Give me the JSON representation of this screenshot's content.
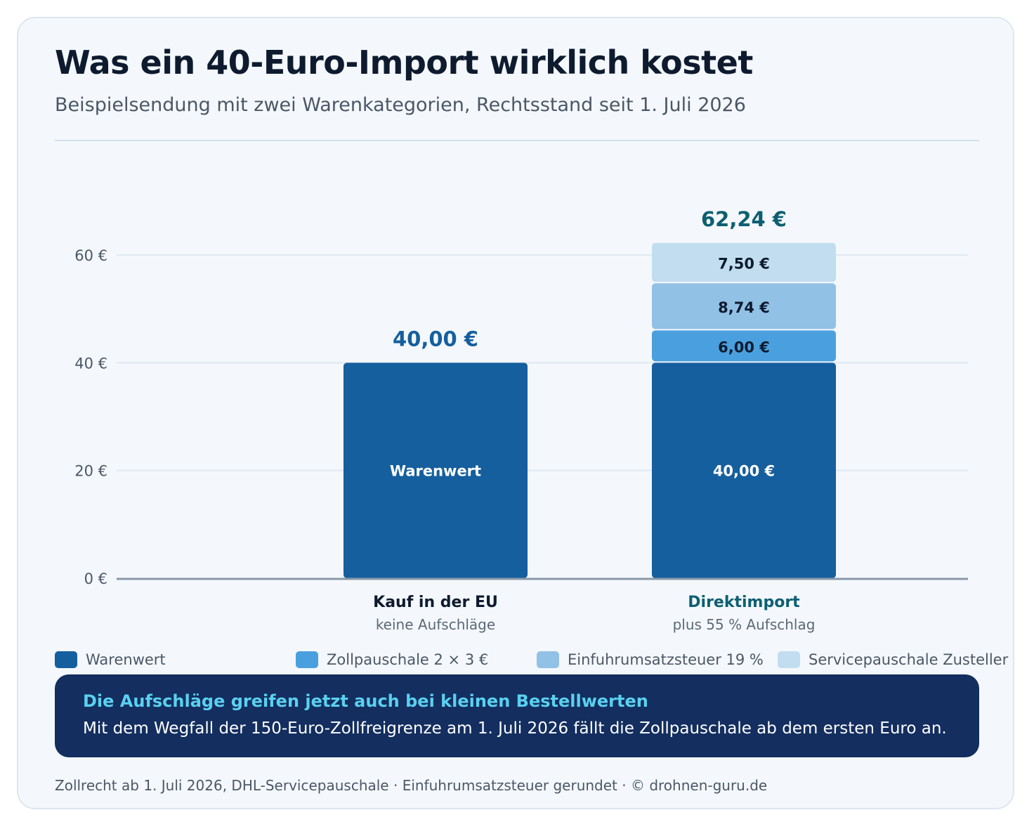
{
  "title": "Was ein 40-Euro-Import wirklich kostet",
  "subtitle": "Beispielsendung mit zwei Warenkategorien, Rechtsstand seit 1. Juli 2026",
  "colors": {
    "warenwert": "#155f9e",
    "zollpauschale": "#4aa0de",
    "einfuhrumsatzsteuer": "#92c1e6",
    "servicepauschale": "#c2ddf0",
    "total_eu": "#155f9e",
    "total_import": "#0d5f72",
    "callout_bg": "#132e5f",
    "callout_head": "#5ad0f0"
  },
  "chart_data": {
    "type": "bar",
    "stacked": true,
    "categories": [
      "Kauf in der EU",
      "Direktimport"
    ],
    "category_sublabels": [
      "keine Aufschläge",
      "plus 55 % Aufschlag"
    ],
    "series": [
      {
        "name": "Warenwert",
        "values": [
          40.0,
          40.0
        ],
        "color": "#155f9e"
      },
      {
        "name": "Zollpauschale 2 × 3 €",
        "values": [
          0,
          6.0
        ],
        "color": "#4aa0de"
      },
      {
        "name": "Einfuhrumsatzsteuer 19 %",
        "values": [
          0,
          8.74
        ],
        "color": "#92c1e6"
      },
      {
        "name": "Servicepauschale Zusteller",
        "values": [
          0,
          7.5
        ],
        "color": "#c2ddf0"
      }
    ],
    "segment_labels": [
      [
        "Warenwert",
        "",
        "",
        ""
      ],
      [
        "40,00 €",
        "6,00 €",
        "8,74 €",
        "7,50 €"
      ]
    ],
    "totals": [
      40.0,
      62.24
    ],
    "total_labels": [
      "40,00 €",
      "62,24 €"
    ],
    "yticks": [
      0,
      20,
      40,
      60
    ],
    "ytick_labels": [
      "0 €",
      "20 €",
      "40 €",
      "60 €"
    ],
    "ylim": [
      0,
      60
    ],
    "grid": true,
    "legend_position": "bottom"
  },
  "callout": {
    "heading": "Die Aufschläge greifen jetzt auch bei kleinen Bestellwerten",
    "body": "Mit dem Wegfall der 150-Euro-Zollfreigrenze am 1. Juli 2026 fällt die Zollpauschale ab dem ersten Euro an."
  },
  "footer": "Zollrecht ab 1. Juli 2026, DHL-Servicepauschale · Einfuhrumsatzsteuer gerundet · © drohnen-guru.de"
}
